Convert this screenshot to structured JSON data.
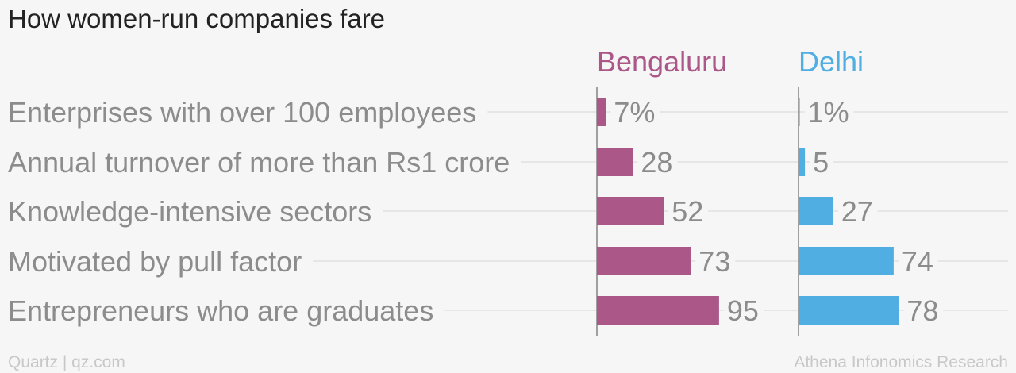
{
  "chart_data": {
    "type": "bar",
    "orientation": "horizontal",
    "title": "How women-run companies fare",
    "categories": [
      "Enterprises with over 100 employees",
      "Annual turnover of more than Rs1 crore",
      "Knowledge-intensive sectors",
      "Motivated by pull factor",
      "Entrepreneurs who are graduates"
    ],
    "series": [
      {
        "name": "Bengaluru",
        "color": "#ab5787",
        "values": [
          7,
          28,
          52,
          73,
          95
        ],
        "labels": [
          "7%",
          "28",
          "52",
          "73",
          "95"
        ]
      },
      {
        "name": "Delhi",
        "color": "#51aee2",
        "values": [
          1,
          5,
          27,
          74,
          78
        ],
        "labels": [
          "1%",
          "5",
          "27",
          "74",
          "78"
        ]
      }
    ],
    "xlim": [
      0,
      100
    ],
    "grid": false,
    "legend": "top"
  },
  "footer": {
    "left": "Quartz | qz.com",
    "right": "Athena Infonomics Research"
  }
}
